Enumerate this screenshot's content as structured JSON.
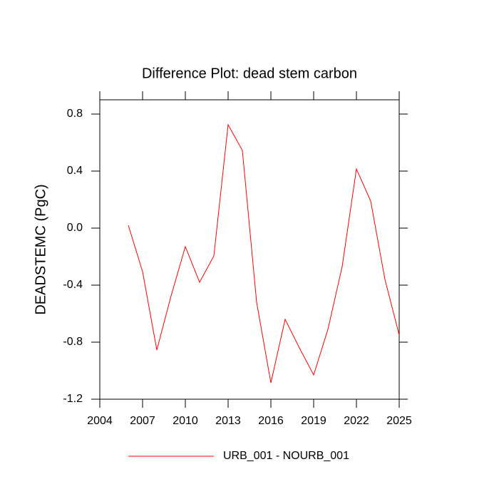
{
  "chart_data": {
    "type": "line",
    "title": "Difference Plot: dead stem carbon",
    "y_label": "DEADSTEMC  (PgC)",
    "x": [
      2006,
      2007,
      2008,
      2009,
      2010,
      2011,
      2012,
      2013,
      2014,
      2015,
      2016,
      2017,
      2018,
      2019,
      2020,
      2021,
      2022,
      2023,
      2024,
      2025
    ],
    "series": [
      {
        "name": "URB_001 - NOURB_001",
        "color": "#ff0000",
        "values": [
          0.02,
          -0.305,
          -0.855,
          -0.475,
          -0.13,
          -0.38,
          -0.195,
          0.725,
          0.545,
          -0.52,
          -1.085,
          -0.64,
          -0.84,
          -1.03,
          -0.71,
          -0.27,
          0.415,
          0.19,
          -0.36,
          -0.75
        ]
      }
    ],
    "xlim": [
      2004,
      2025
    ],
    "xticks": [
      2004,
      2007,
      2010,
      2013,
      2016,
      2019,
      2022,
      2025
    ],
    "ylim": [
      -1.2,
      0.9
    ],
    "yticks": [
      {
        "value": -1.2,
        "label": "-1.2"
      },
      {
        "value": -0.8,
        "label": "-0.8"
      },
      {
        "value": -0.4,
        "label": "-0.4"
      },
      {
        "value": 0,
        "label": "0.0"
      },
      {
        "value": 0.4,
        "label": "0.4"
      },
      {
        "value": 0.8,
        "label": "0.8"
      }
    ],
    "grid": false,
    "legend": "bottom"
  }
}
